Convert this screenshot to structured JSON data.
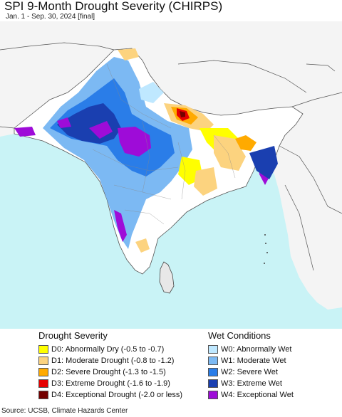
{
  "title": "SPI 9-Month Drought Severity (CHIRPS)",
  "subtitle": "Jan. 1 - Sep. 30, 2024 [final]",
  "legend": {
    "drought_title": "Drought Severity",
    "wet_title": "Wet Conditions",
    "drought": [
      {
        "label": "D0: Abnormally Dry (-0.5 to -0.7)",
        "color": "#ffff00"
      },
      {
        "label": "D1: Moderate Drought (-0.8 to -1.2)",
        "color": "#fcd37f"
      },
      {
        "label": "D2: Severe Drought (-1.3 to -1.5)",
        "color": "#ffaa00"
      },
      {
        "label": "D3: Extreme Drought (-1.6 to -1.9)",
        "color": "#e60000"
      },
      {
        "label": "D4: Exceptional Drought (-2.0 or less)",
        "color": "#730000"
      }
    ],
    "wet": [
      {
        "label": "W0: Abnormally Wet",
        "color": "#bfe8ff"
      },
      {
        "label": "W1: Moderate Wet",
        "color": "#7cb9f3"
      },
      {
        "label": "W2: Severe Wet",
        "color": "#2a7de8"
      },
      {
        "label": "W3: Extreme Wet",
        "color": "#1a3fb0"
      },
      {
        "label": "W4: Exceptional Wet",
        "color": "#9e0cd8"
      }
    ]
  },
  "source": "Source: UCSB, Climate Hazards Center"
}
